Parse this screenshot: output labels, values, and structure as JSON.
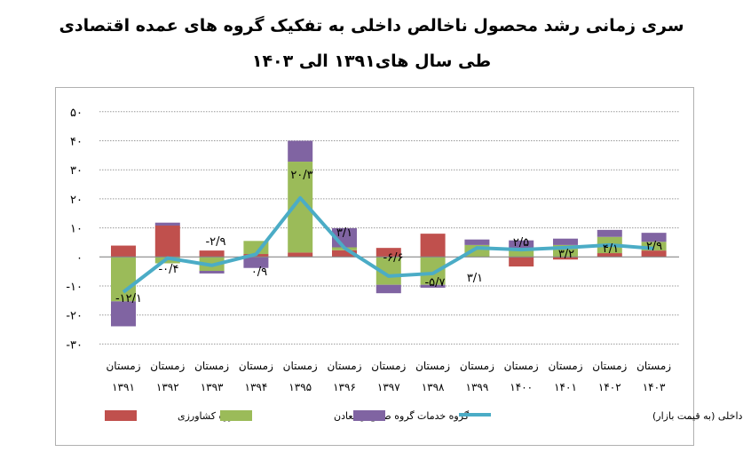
{
  "chart_data": {
    "type": "bar",
    "stacked": true,
    "title": "سری زمانی رشد محصول ناخالص داخلی به تفکیک گروه های عمده اقتصادی",
    "subtitle": "طی سال های۱۳۹۱ الی ۱۴۰۳",
    "season_label": "زمستان",
    "categories": [
      "۱۳۹۱",
      "۱۳۹۲",
      "۱۳۹۳",
      "۱۳۹۴",
      "۱۳۹۵",
      "۱۳۹۶",
      "۱۳۹۷",
      "۱۳۹۸",
      "۱۳۹۹",
      "۱۴۰۰",
      "۱۴۰۱",
      "۱۴۰۲",
      "۱۴۰۳"
    ],
    "ylim": [
      -30,
      50
    ],
    "yticks": [
      50,
      40,
      30,
      20,
      10,
      0,
      -10,
      -20,
      -30
    ],
    "ytick_labels": [
      "۵۰",
      "۴۰",
      "۳۰",
      "۲۰",
      "۱۰",
      "۰",
      "-۱۰",
      "-۲۰",
      "-۳۰"
    ],
    "grid": true,
    "legend_position": "bottom",
    "series": [
      {
        "name": "گروه کشاورزی",
        "color": "#c0504d",
        "values": [
          3.9,
          10.8,
          2.2,
          1.0,
          1.5,
          2.3,
          3.1,
          8.0,
          0.0,
          -3.3,
          -0.9,
          1.3,
          2.2
        ]
      },
      {
        "name": "گروه صنایع و معادن",
        "color": "#9bbb59",
        "values": [
          -15.3,
          -2.2,
          -4.8,
          4.5,
          31.3,
          1.0,
          -9.6,
          -9.6,
          4.1,
          2.9,
          4.1,
          5.6,
          3.0
        ]
      },
      {
        "name": "گروه خدمات",
        "color": "#8064a2",
        "values": [
          -8.6,
          1.0,
          -0.9,
          -3.8,
          7.2,
          6.6,
          -2.9,
          -1.0,
          1.9,
          2.8,
          2.2,
          2.4,
          3.1
        ]
      },
      {
        "name": "محصول ناخالص داخلی (به قیمت بازار)",
        "type": "line",
        "color": "#4bacc6",
        "values": [
          -12.1,
          -0.4,
          -2.9,
          0.9,
          20.3,
          3.1,
          -6.6,
          -5.7,
          3.1,
          2.5,
          3.2,
          4.1,
          2.9
        ],
        "data_labels": [
          "-۱۲/۱",
          "-۰/۴",
          "-۲/۹",
          "۰/۹",
          "۲۰/۳",
          "۳/۱",
          "-۶/۶",
          "-۵/۷",
          "۳/۱",
          "۲/۵",
          "۳/۲",
          "۴/۱",
          "۲/۹"
        ]
      }
    ]
  }
}
